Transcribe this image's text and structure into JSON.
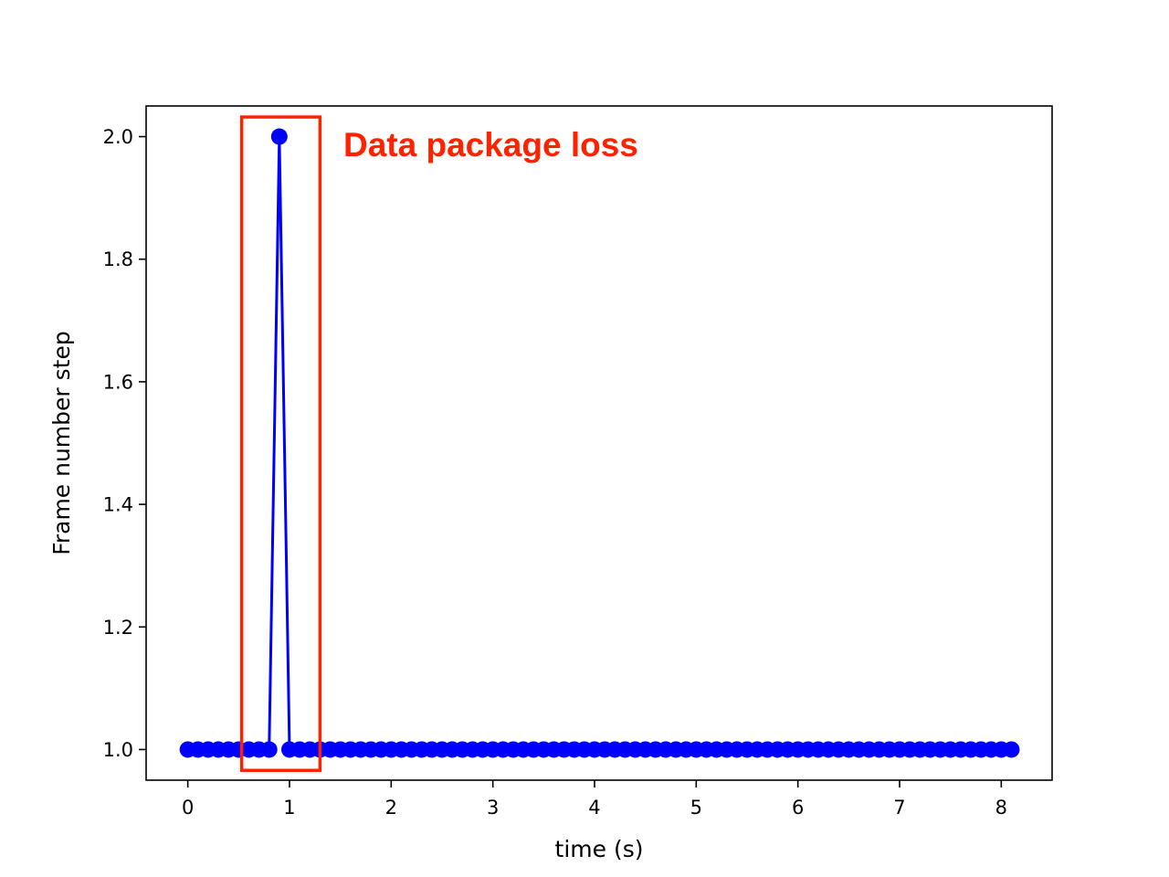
{
  "chart_data": {
    "type": "line",
    "title": "",
    "xlabel": "time (s)",
    "ylabel": "Frame number step",
    "xlim": [
      -0.41,
      8.5
    ],
    "ylim": [
      0.95,
      2.05
    ],
    "xticks": [
      0,
      1,
      2,
      3,
      4,
      5,
      6,
      7,
      8
    ],
    "xtick_labels": [
      "0",
      "1",
      "2",
      "3",
      "4",
      "5",
      "6",
      "7",
      "8"
    ],
    "yticks": [
      1.0,
      1.2,
      1.4,
      1.6,
      1.8,
      2.0
    ],
    "ytick_labels": [
      "1.0",
      "1.2",
      "1.4",
      "1.6",
      "1.8",
      "2.0"
    ],
    "grid": false,
    "series": [
      {
        "color": "#0000ff",
        "marker": "circle",
        "x": [
          0,
          0.1,
          0.2,
          0.3,
          0.4,
          0.5,
          0.6,
          0.7,
          0.8,
          0.9,
          1.0,
          1.1,
          1.2,
          1.3,
          1.4,
          1.5,
          1.6,
          1.7,
          1.8,
          1.9,
          2.0,
          2.1,
          2.2,
          2.3,
          2.4,
          2.5,
          2.6,
          2.7,
          2.8,
          2.9,
          3.0,
          3.1,
          3.2,
          3.3,
          3.4,
          3.5,
          3.6,
          3.7,
          3.8,
          3.9,
          4.0,
          4.1,
          4.2,
          4.3,
          4.4,
          4.5,
          4.6,
          4.7,
          4.8,
          4.9,
          5.0,
          5.1,
          5.2,
          5.3,
          5.4,
          5.5,
          5.6,
          5.7,
          5.8,
          5.9,
          6.0,
          6.1,
          6.2,
          6.3,
          6.4,
          6.5,
          6.6,
          6.7,
          6.8,
          6.9,
          7.0,
          7.1,
          7.2,
          7.3,
          7.4,
          7.5,
          7.6,
          7.7,
          7.8,
          7.9,
          8.0,
          8.1
        ],
        "y": [
          1,
          1,
          1,
          1,
          1,
          1,
          1,
          1,
          1,
          2,
          1,
          1,
          1,
          1,
          1,
          1,
          1,
          1,
          1,
          1,
          1,
          1,
          1,
          1,
          1,
          1,
          1,
          1,
          1,
          1,
          1,
          1,
          1,
          1,
          1,
          1,
          1,
          1,
          1,
          1,
          1,
          1,
          1,
          1,
          1,
          1,
          1,
          1,
          1,
          1,
          1,
          1,
          1,
          1,
          1,
          1,
          1,
          1,
          1,
          1,
          1,
          1,
          1,
          1,
          1,
          1,
          1,
          1,
          1,
          1,
          1,
          1,
          1,
          1,
          1,
          1,
          1,
          1,
          1,
          1,
          1,
          1
        ]
      }
    ],
    "annotation": {
      "text": "Data package loss",
      "color": "#ff2200",
      "box_x": [
        0.53,
        1.3
      ],
      "box_y": [
        0.966,
        2.032
      ]
    }
  }
}
